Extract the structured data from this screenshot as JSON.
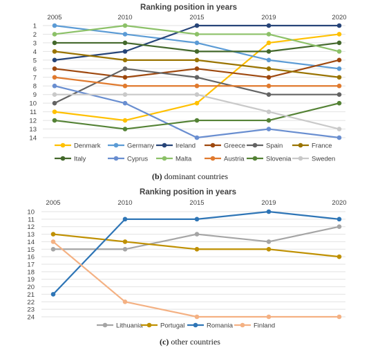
{
  "chart_data": [
    {
      "type": "line",
      "title": "Ranking position in years",
      "x": [
        "2005",
        "2010",
        "2015",
        "2019",
        "2020"
      ],
      "y_ticks": [
        "1",
        "2",
        "3",
        "4",
        "5",
        "6",
        "7",
        "8",
        "9",
        "10",
        "11",
        "12",
        "13",
        "14"
      ],
      "ylim": [
        1,
        14
      ],
      "y_inverted": true,
      "grid": true,
      "legend_position": "bottom",
      "caption_label": "(b)",
      "caption_text": "dominant countries",
      "series": [
        {
          "name": "Denmark",
          "color": "#FFC000",
          "values": [
            11,
            12,
            10,
            3,
            2
          ]
        },
        {
          "name": "Germany",
          "color": "#5B9BD5",
          "values": [
            1,
            2,
            3,
            5,
            6
          ]
        },
        {
          "name": "Ireland",
          "color": "#264478",
          "values": [
            5,
            4,
            1,
            1,
            1
          ]
        },
        {
          "name": "Greece",
          "color": "#9E480E",
          "values": [
            6,
            7,
            6,
            7,
            5
          ]
        },
        {
          "name": "Spain",
          "color": "#636363",
          "values": [
            10,
            6,
            7,
            9,
            9
          ]
        },
        {
          "name": "France",
          "color": "#997300",
          "values": [
            4,
            5,
            5,
            6,
            7
          ]
        },
        {
          "name": "Italy",
          "color": "#43682B",
          "values": [
            3,
            3,
            4,
            4,
            3
          ]
        },
        {
          "name": "Cyprus",
          "color": "#698ED0",
          "values": [
            8,
            10,
            14,
            13,
            14
          ]
        },
        {
          "name": "Malta",
          "color": "#8CC168",
          "values": [
            2,
            1,
            2,
            2,
            4
          ]
        },
        {
          "name": "Austria",
          "color": "#E07A2E",
          "values": [
            7,
            8,
            8,
            8,
            8
          ]
        },
        {
          "name": "Slovenia",
          "color": "#548235",
          "values": [
            12,
            13,
            12,
            12,
            10
          ]
        },
        {
          "name": "Sweden",
          "color": "#C9C9C9",
          "values": [
            9,
            9,
            9,
            11,
            13
          ]
        }
      ]
    },
    {
      "type": "line",
      "title": "Ranking position in years",
      "x": [
        "2005",
        "2010",
        "2015",
        "2019",
        "2020"
      ],
      "y_ticks": [
        "10",
        "11",
        "12",
        "13",
        "14",
        "15",
        "16",
        "17",
        "18",
        "19",
        "20",
        "21",
        "22",
        "23",
        "24"
      ],
      "ylim": [
        10,
        24
      ],
      "y_inverted": true,
      "grid": true,
      "legend_position": "bottom",
      "caption_label": "(c)",
      "caption_text": "other countries",
      "series": [
        {
          "name": "Lithuania",
          "color": "#A5A5A5",
          "values": [
            15,
            15,
            13,
            14,
            12
          ]
        },
        {
          "name": "Portugal",
          "color": "#BF9000",
          "values": [
            13,
            14,
            15,
            15,
            16
          ]
        },
        {
          "name": "Romania",
          "color": "#2E75B6",
          "values": [
            21,
            11,
            11,
            10,
            11
          ]
        },
        {
          "name": "Finland",
          "color": "#F4B183",
          "values": [
            14,
            22,
            24,
            24,
            24
          ]
        }
      ]
    }
  ]
}
